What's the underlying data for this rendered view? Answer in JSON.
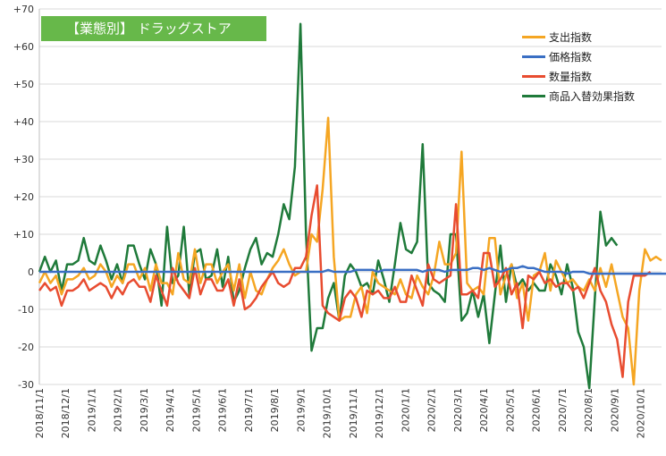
{
  "chart_data": {
    "type": "line",
    "title": "【業態別】 ドラッグストア",
    "ylim": [
      -30,
      70
    ],
    "yticks": [
      70,
      60,
      50,
      40,
      30,
      20,
      10,
      0,
      -10,
      -20,
      -30
    ],
    "ytick_labels": [
      "+70",
      "+60",
      "+50",
      "+40",
      "+30",
      "+20",
      "+10",
      "0",
      "-10",
      "-20",
      "-30"
    ],
    "xtick_labels": [
      "2018/11/1",
      "2018/12/1",
      "2019/1/1",
      "2019/2/1",
      "2019/3/1",
      "2019/4/1",
      "2019/5/1",
      "2019/6/1",
      "2019/7/1",
      "2019/8/1",
      "2019/9/1",
      "2019/10/1",
      "2019/11/1",
      "2019/12/1",
      "2020/1/1",
      "2020/2/1",
      "2020/3/1",
      "2020/4/1",
      "2020/5/1",
      "2020/6/1",
      "2020/7/1",
      "2020/8/1",
      "2020/9/1",
      "2020/10/1"
    ],
    "grid": "horizontal",
    "legend_position": "top-right",
    "series": [
      {
        "name": "支出指数",
        "color": "#f5a623",
        "values": [
          -3,
          0,
          -3,
          -1,
          -6,
          -2,
          -2,
          -1,
          1,
          -2,
          -1,
          2,
          0,
          -4,
          -1,
          -3,
          2,
          2,
          -2,
          1,
          -5,
          2,
          -3,
          -3,
          -6,
          5,
          -2,
          -3,
          6,
          -3,
          2,
          2,
          -3,
          0,
          2,
          -5,
          2,
          -7,
          0,
          -5,
          -6,
          -2,
          1,
          3,
          6,
          2,
          -1,
          0,
          0,
          10,
          8,
          22,
          41,
          4,
          -13,
          -12,
          -12,
          -6,
          -4,
          -11,
          0,
          -3,
          -4,
          -5,
          -6,
          -2,
          -6,
          -7,
          -1,
          -4,
          -6,
          -1,
          8,
          2,
          2,
          5,
          32,
          -3,
          -5,
          -4,
          -6,
          9,
          9,
          -6,
          -1,
          2,
          -7,
          -3,
          -13,
          -1,
          0,
          5,
          -5,
          3,
          0,
          -3,
          -2,
          -4,
          -5,
          -2,
          -5,
          1,
          -4,
          2,
          -5,
          -12,
          -15,
          -30,
          -5,
          6,
          3,
          4,
          3
        ],
        "marks": [
          {
            "n": "支出指数",
            "v": [
              -3,
              0,
              -3,
              -1,
              -6,
              -2,
              -2,
              -1,
              1,
              -2,
              -1,
              2,
              0,
              -4,
              -1,
              -3,
              2,
              2,
              -2,
              1,
              -5,
              2,
              -3,
              -3,
              -6,
              5,
              -2,
              -3,
              6,
              -3,
              2,
              2,
              -3,
              0,
              2,
              -5,
              2,
              -7,
              0,
              -5,
              -6,
              -2,
              1,
              3,
              6,
              2,
              -1,
              0,
              0,
              10,
              8,
              22,
              41,
              4,
              -13,
              -12,
              -12,
              -6,
              -4,
              -11,
              0,
              -3,
              -4,
              -5,
              -6,
              -2,
              -6,
              -7,
              -1,
              -4,
              -6,
              -1,
              8,
              2,
              2,
              5,
              32,
              -3,
              -5,
              -4,
              -6,
              9,
              9,
              -6,
              -1,
              2,
              -7,
              -3,
              -13,
              -1,
              0,
              5,
              -5,
              3,
              0,
              -3,
              -2,
              -4,
              -5,
              -2,
              -5,
              1,
              -4,
              2,
              -5,
              -12,
              -15,
              -30,
              -5,
              6,
              3,
              4,
              3
            ]
          }
        ]
      },
      {
        "name": "価格指数",
        "color": "#3a6fc4",
        "values": [
          0,
          0,
          0,
          0,
          0,
          0,
          0,
          0,
          0,
          0,
          0,
          0,
          0,
          0,
          0,
          0,
          0,
          0,
          0,
          0,
          0,
          0,
          0,
          0,
          0,
          0,
          0,
          0,
          0,
          0,
          0,
          0,
          0,
          0,
          0,
          0,
          0,
          0,
          0,
          0,
          0,
          0,
          0,
          0,
          0,
          0,
          0,
          0,
          0,
          0,
          0,
          0,
          0.5,
          0,
          0,
          0,
          0,
          0.5,
          0.5,
          0.5,
          0.5,
          0,
          0.5,
          0.5,
          0.5,
          0.5,
          0.5,
          0.5,
          0.5,
          0,
          0.5,
          0.5,
          0.5,
          0,
          0.5,
          0.5,
          0.5,
          0.5,
          1,
          1,
          0.5,
          1,
          0.5,
          0,
          0.5,
          1,
          1,
          1.5,
          1,
          1,
          0.5,
          0,
          0,
          0,
          0,
          -0.5,
          0,
          0,
          0,
          -0.5,
          -0.5,
          -0.5,
          -0.5,
          -0.5,
          -0.5,
          -0.5,
          -0.5,
          -0.5,
          -0.5,
          -0.5,
          -0.5,
          -0.5,
          -0.5,
          -0.5
        ]
      },
      {
        "name": "数量指数",
        "color": "#e84c30",
        "values": [
          -5,
          -3,
          -5,
          -4,
          -9,
          -5,
          -5,
          -4,
          -2,
          -5,
          -4,
          -3,
          -4,
          -7,
          -4,
          -6,
          -3,
          -2,
          -4,
          -4,
          -8,
          -1,
          -5,
          -9,
          1,
          -3,
          -5,
          -7,
          1,
          -6,
          -2,
          -2,
          -5,
          -5,
          -2,
          -9,
          -2,
          -10,
          -9,
          -7,
          -4,
          -2,
          0,
          -3,
          -4,
          -3,
          1,
          1,
          4,
          15,
          23,
          -9,
          -11,
          -12,
          -13,
          -7,
          -5,
          -7,
          -12,
          -5,
          -6,
          -5,
          -7,
          -7,
          -4,
          -8,
          -8,
          -1,
          -5,
          -9,
          2,
          -2,
          -3,
          -2,
          -1,
          18,
          -6,
          -6,
          -5,
          -7,
          5,
          5,
          -4,
          -2,
          1,
          -6,
          -3,
          -15,
          -1,
          -2,
          0,
          -3,
          -2,
          -4,
          -3,
          -3,
          -5,
          -4,
          -7,
          -3,
          1,
          -5,
          -8,
          -14,
          -18,
          -28,
          -8,
          -1,
          -1,
          -1,
          0
        ],
        "_": "reproduced"
      },
      {
        "name": "商品入替効果指数",
        "color": "#1f7a3a",
        "values": [
          0,
          4,
          0,
          3,
          -5,
          2,
          2,
          3,
          9,
          3,
          2,
          7,
          3,
          -2,
          2,
          -3,
          7,
          7,
          2,
          -2,
          6,
          2,
          -9,
          12,
          -3,
          -1,
          12,
          -6,
          5,
          6,
          -2,
          -1,
          6,
          -4,
          4,
          -8,
          -5,
          1,
          6,
          9,
          2,
          5,
          4,
          10,
          18,
          14,
          28,
          66,
          10,
          -21,
          -15,
          -15,
          -7,
          -3,
          -13,
          -1,
          2,
          0,
          -4,
          -3,
          -6,
          3,
          -2,
          -8,
          2,
          13,
          6,
          5,
          8,
          34,
          -3,
          -5,
          -6,
          -8,
          10,
          10,
          -13,
          -11,
          -5,
          -12,
          -6,
          -19,
          -6,
          7,
          -8,
          2,
          -4,
          -2,
          -5,
          -3,
          -5,
          -5,
          2,
          -1,
          -6,
          2,
          -4,
          -16,
          -20,
          -31,
          -7,
          16,
          7,
          9,
          7
        ],
        "_2": "reproduced"
      }
    ]
  }
}
